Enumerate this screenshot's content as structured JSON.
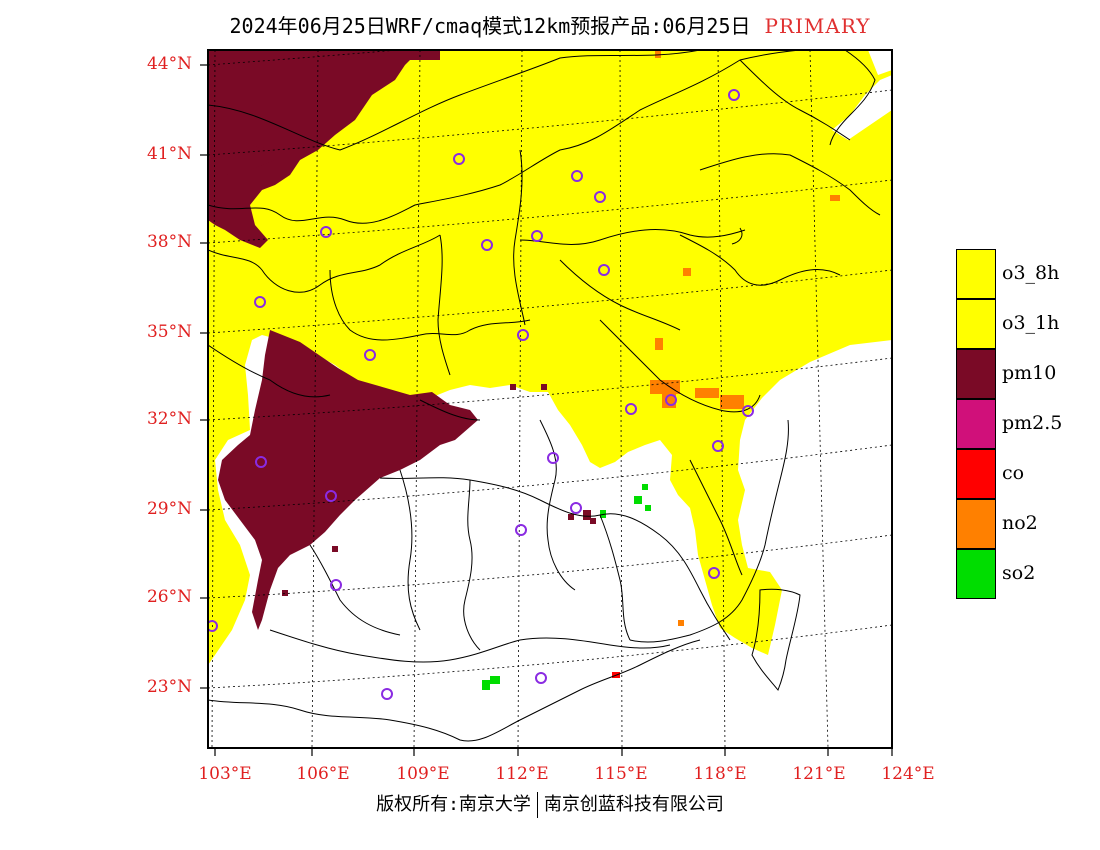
{
  "title": {
    "main": "2024年06月25日WRF/cmaq模式12km预报产品:06月25日",
    "tag": "PRIMARY"
  },
  "lat_ticks": [
    "44°N",
    "41°N",
    "38°N",
    "35°N",
    "32°N",
    "29°N",
    "26°N",
    "23°N"
  ],
  "lon_ticks": [
    "103°E",
    "106°E",
    "109°E",
    "112°E",
    "115°E",
    "118°E",
    "121°E",
    "124°E"
  ],
  "legend": [
    {
      "label": "o3_8h",
      "color": "#ffff00"
    },
    {
      "label": "o3_1h",
      "color": "#ffff00"
    },
    {
      "label": "pm10",
      "color": "#7a0a26"
    },
    {
      "label": "pm2.5",
      "color": "#d0107a"
    },
    {
      "label": "co",
      "color": "#ff0000"
    },
    {
      "label": "no2",
      "color": "#ff8000"
    },
    {
      "label": "so2",
      "color": "#00dd00"
    }
  ],
  "footer": {
    "left": "版权所有:南京大学",
    "right": "南京创蓝科技有限公司"
  },
  "colors": {
    "axis_label": "#e02020",
    "station_marker": "#8a2be2",
    "tag": "#e03030"
  }
}
